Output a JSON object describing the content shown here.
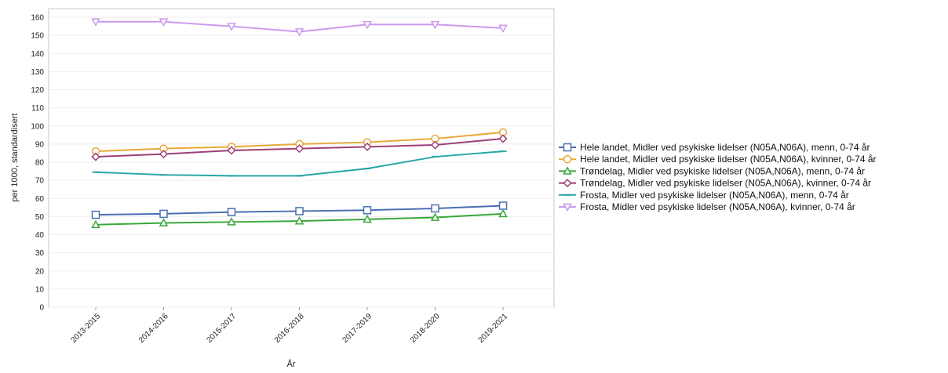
{
  "chart_data": {
    "type": "line",
    "xlabel": "År",
    "ylabel": "per 1000, standardisert",
    "ylim": [
      0,
      160
    ],
    "ytick_step": 10,
    "grid": true,
    "legend_position": "right",
    "categories": [
      "2013-2015",
      "2014-2016",
      "2015-2017",
      "2016-2018",
      "2017-2019",
      "2018-2020",
      "2019-2021"
    ],
    "series": [
      {
        "name": "Hele landet, Midler ved psykiske lidelser (N05A,N06A), menn, 0-74 år",
        "color": "#4a6fb3",
        "marker": "square",
        "values": [
          51,
          51.5,
          52.5,
          53,
          53.5,
          54.5,
          56
        ]
      },
      {
        "name": "Hele landet, Midler ved psykiske lidelser (N05A,N06A), kvinner, 0-74 år",
        "color": "#e8a838",
        "marker": "circle",
        "values": [
          86,
          87.5,
          88.5,
          90,
          91,
          93,
          96.5
        ]
      },
      {
        "name": "Trøndelag, Midler ved psykiske lidelser (N05A,N06A), menn, 0-74 år",
        "color": "#3aa83a",
        "marker": "triangle-up",
        "values": [
          45.5,
          46.5,
          47,
          47.5,
          48.5,
          49.5,
          51.5
        ]
      },
      {
        "name": "Trøndelag, Midler ved psykiske lidelser (N05A,N06A), kvinner, 0-74 år",
        "color": "#9c3f7a",
        "marker": "diamond",
        "values": [
          83,
          84.5,
          86.5,
          87.5,
          88.5,
          89.5,
          93
        ]
      },
      {
        "name": "Frosta, Midler ved psykiske lidelser (N05A,N06A), menn, 0-74 år",
        "color": "#2aa6a6",
        "marker": "dash",
        "values": [
          74.5,
          73,
          72.5,
          72.5,
          76.5,
          83,
          86
        ]
      },
      {
        "name": "Frosta, Midler ved psykiske lidelser (N05A,N06A), kvinner, 0-74 år",
        "color": "#cc99ee",
        "marker": "triangle-down",
        "values": [
          157.5,
          157.5,
          155,
          152,
          156,
          156,
          154
        ]
      }
    ]
  }
}
